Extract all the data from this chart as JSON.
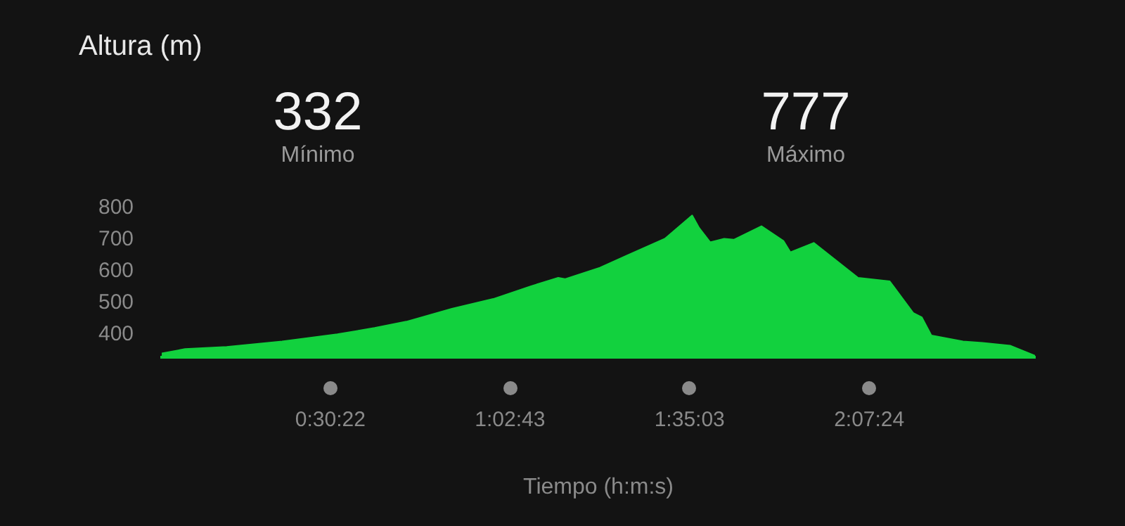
{
  "chart_data": {
    "type": "area",
    "title": "Altura (m)",
    "xlabel": "Tiempo (h:m:s)",
    "annotations": [
      "332",
      "Mínimo",
      "777",
      "Máximo"
    ],
    "x": [
      0,
      0.07,
      0.195,
      0.361,
      0.527,
      0.639,
      0.734,
      0.871,
      0.995,
      1.107,
      1.19,
      1.21,
      1.315,
      1.397,
      1.51,
      1.592,
      1.613,
      1.646,
      1.688,
      1.717,
      1.8,
      1.866,
      1.887,
      1.957,
      2.09,
      2.185,
      2.256,
      2.281,
      2.31,
      2.405,
      2.463,
      2.546,
      2.621
    ],
    "series": [
      {
        "color": "#12d13e",
        "values": [
          339,
          353,
          360,
          377,
          400,
          420,
          440,
          481,
          512,
          552,
          579,
          575,
          611,
          650,
          703,
          777,
          737,
          692,
          703,
          700,
          743,
          696,
          660,
          690,
          579,
          568,
          467,
          454,
          396,
          377,
          373,
          364,
          332
        ]
      }
    ],
    "xlim": [
      0,
      2.621
    ],
    "ylim": [
      327,
      800
    ],
    "xticks": [
      {
        "value": 0.50611,
        "label": "0:30:22"
      },
      {
        "value": 1.04528,
        "label": "1:02:43"
      },
      {
        "value": 1.58417,
        "label": "1:35:03"
      },
      {
        "value": 2.12333,
        "label": "2:07:24"
      }
    ],
    "yticks": [
      400,
      500,
      600,
      700,
      800
    ],
    "grid": false,
    "legend": false
  }
}
